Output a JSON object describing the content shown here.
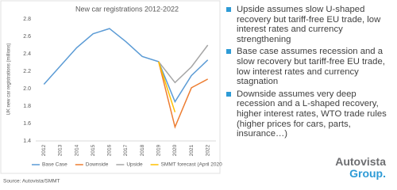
{
  "chart_data": {
    "type": "line",
    "title": "New car registrations 2012-2022",
    "y_label": "UK new car registrations (millions)",
    "categories": [
      "2012",
      "2013",
      "2014",
      "2015",
      "2016",
      "2017",
      "2018",
      "2019",
      "2020",
      "2021",
      "2022"
    ],
    "series": [
      {
        "name": "Base Case",
        "color": "#5b9bd5",
        "values": [
          2.05,
          2.26,
          2.47,
          2.63,
          2.69,
          2.54,
          2.37,
          2.31,
          1.85,
          2.15,
          2.33
        ]
      },
      {
        "name": "Downside",
        "color": "#ed7d31",
        "values": [
          null,
          null,
          null,
          null,
          null,
          null,
          null,
          2.31,
          1.56,
          2.01,
          2.11
        ]
      },
      {
        "name": "Upside",
        "color": "#a5a5a5",
        "values": [
          null,
          null,
          null,
          null,
          null,
          null,
          null,
          2.31,
          2.07,
          2.25,
          2.5
        ]
      },
      {
        "name": "SMMT forecast (April 2020)",
        "color": "#ffc000",
        "values": [
          null,
          null,
          null,
          null,
          null,
          null,
          null,
          2.31,
          1.73,
          null,
          null
        ]
      }
    ],
    "ylim": [
      1.4,
      2.8
    ],
    "yticks": [
      1.4,
      1.6,
      1.8,
      {
        "value": 2,
        "label": "2.0"
      },
      2.2,
      2.4,
      2.6,
      2.8
    ],
    "grid": false,
    "legend": "bottom",
    "source": "Source: Autovista/SMMT"
  },
  "bullets": [
    "Upside assumes slow U-shaped recovery  but tariff-free EU trade, low interest rates and currency strengthening",
    "Base case assumes recession and a slow recovery  but tariff-free  EU trade, low interest rates and currency stagnation",
    "Downside assumes very deep recession and a L-shaped recovery,  higher interest rates, WTO trade rules (higher prices for cars, parts, insurance…)"
  ],
  "logo": {
    "line1": "Autovista",
    "line2": "Group."
  }
}
